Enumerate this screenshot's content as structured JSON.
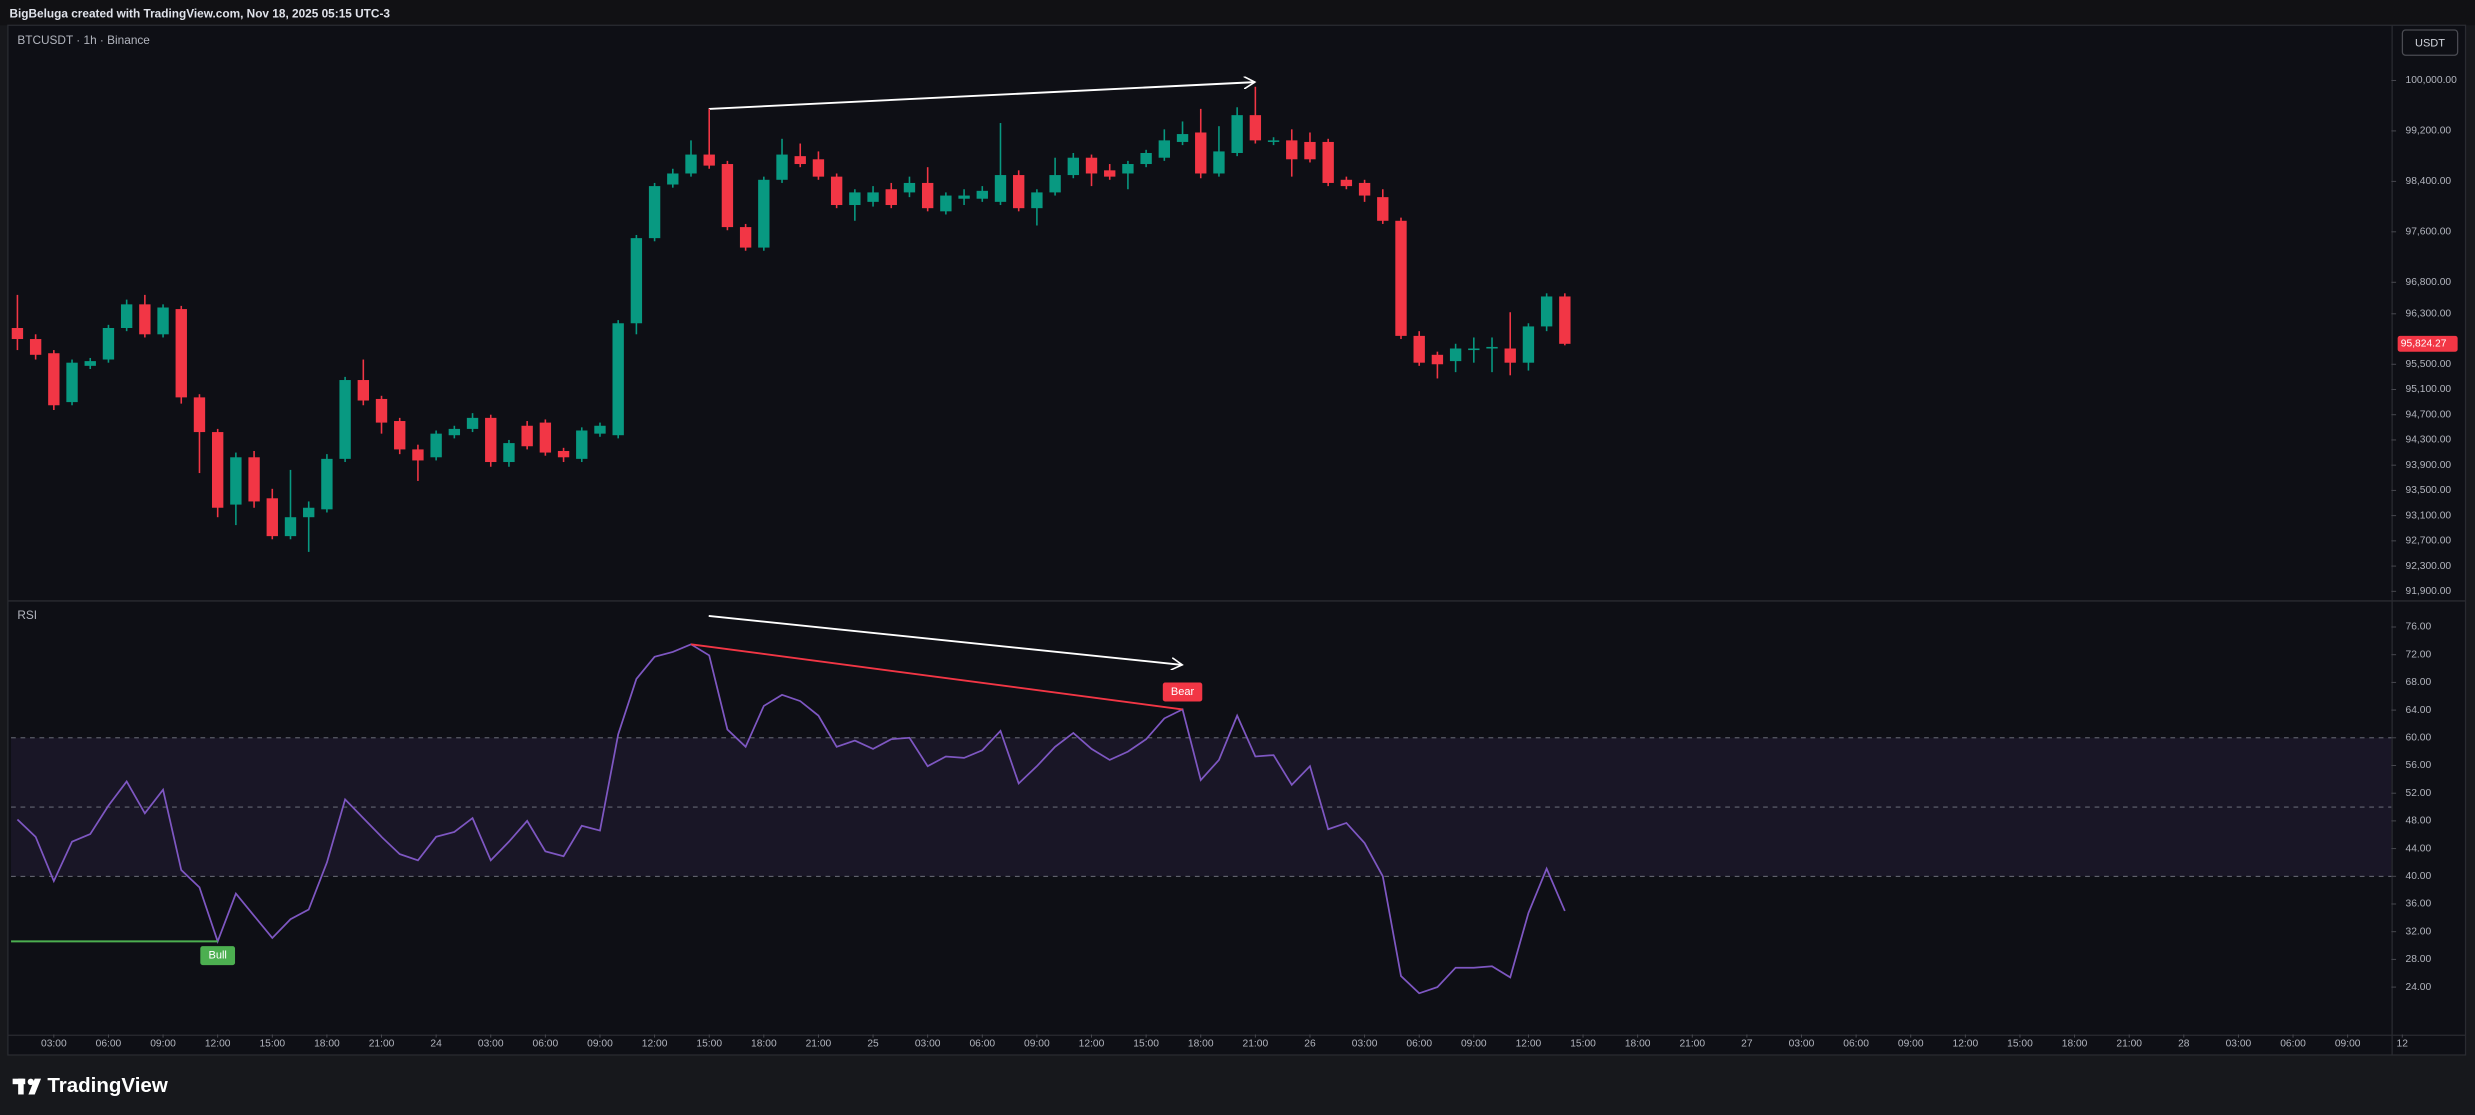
{
  "header": {
    "credit": "BigBeluga created with TradingView.com, Nov 18, 2025 05:15 UTC-3"
  },
  "footer": {
    "brand": "TradingView"
  },
  "chart_data": [
    {
      "type": "candlestick",
      "title": "BTCUSDT · 1h · Binance",
      "unit": "USDT",
      "up_color": "#089981",
      "down_color": "#f23645",
      "grid": false,
      "xlim": [
        -0.35,
        130.4
      ],
      "ylim": [
        91760,
        100850
      ],
      "yticks": [
        {
          "value": 100000,
          "label": "100,000.00"
        },
        {
          "value": 99200,
          "label": "99,200.00"
        },
        {
          "value": 98400,
          "label": "98,400.00"
        },
        {
          "value": 97600,
          "label": "97,600.00"
        },
        {
          "value": 96800,
          "label": "96,800.00"
        },
        {
          "value": 96300,
          "label": "96,300.00"
        },
        {
          "value": 95500,
          "label": "95,500.00"
        },
        {
          "value": 95100,
          "label": "95,100.00"
        },
        {
          "value": 94700,
          "label": "94,700.00"
        },
        {
          "value": 94300,
          "label": "94,300.00"
        },
        {
          "value": 93900,
          "label": "93,900.00"
        },
        {
          "value": 93500,
          "label": "93,500.00"
        },
        {
          "value": 93100,
          "label": "93,100.00"
        },
        {
          "value": 92700,
          "label": "92,700.00"
        },
        {
          "value": 92300,
          "label": "92,300.00"
        },
        {
          "value": 91900,
          "label": "91,900.00"
        }
      ],
      "last_price": {
        "value": 95824.27,
        "label": "95,824.27"
      },
      "open": [
        96075,
        95900,
        95675,
        94900,
        95475,
        95575,
        96075,
        96450,
        95975,
        96375,
        94975,
        94425,
        93275,
        94025,
        93375,
        92775,
        93075,
        93200,
        94000,
        95250,
        94950,
        94600,
        94150,
        94025,
        94375,
        94475,
        94650,
        93950,
        94525,
        94575,
        94125,
        94000,
        94400,
        94375,
        96150,
        97500,
        98350,
        98525,
        98825,
        98675,
        97675,
        97350,
        98425,
        98800,
        98750,
        98475,
        98025,
        98075,
        98275,
        98225,
        98375,
        97925,
        98125,
        98125,
        98075,
        98500,
        97975,
        98225,
        98500,
        98775,
        98575,
        98525,
        98675,
        98775,
        99025,
        99175,
        98525,
        98850,
        99450,
        99025,
        99050,
        99025,
        99025,
        98425,
        98375,
        98150,
        97775,
        95950,
        95650,
        95550,
        95725,
        95750,
        95750,
        95525,
        96100,
        96575
      ],
      "high": [
        96600,
        95975,
        95725,
        95575,
        95600,
        96125,
        96525,
        96600,
        96450,
        96425,
        95025,
        94475,
        94100,
        94125,
        93525,
        93825,
        93325,
        94075,
        95300,
        95575,
        95000,
        94650,
        94225,
        94450,
        94525,
        94725,
        94700,
        94300,
        94600,
        94625,
        94175,
        94500,
        94575,
        96200,
        97550,
        98375,
        98600,
        99050,
        99550,
        98725,
        97725,
        98475,
        99075,
        99000,
        98875,
        98525,
        98275,
        98325,
        98375,
        98475,
        98625,
        98225,
        98275,
        98325,
        99325,
        98575,
        98275,
        98775,
        98850,
        98825,
        98675,
        98725,
        98900,
        99225,
        99350,
        99550,
        99275,
        99575,
        99900,
        99100,
        99225,
        99175,
        99075,
        98475,
        98425,
        98275,
        97825,
        96025,
        95700,
        95825,
        95925,
        95925,
        96325,
        96150,
        96625,
        96625
      ],
      "low": [
        95725,
        95575,
        94775,
        94850,
        95425,
        95525,
        96025,
        95925,
        95925,
        94875,
        93775,
        93075,
        92950,
        93225,
        92725,
        92725,
        92525,
        93150,
        93950,
        94850,
        94400,
        94075,
        93650,
        93975,
        94325,
        94425,
        93875,
        93875,
        94150,
        94050,
        93950,
        93950,
        94350,
        94325,
        95975,
        97450,
        98300,
        98475,
        98600,
        97625,
        97300,
        97300,
        98375,
        98625,
        98425,
        97975,
        97775,
        98000,
        97975,
        98150,
        97925,
        97875,
        98025,
        98075,
        98025,
        97925,
        97700,
        98175,
        98450,
        98325,
        98425,
        98275,
        98625,
        98725,
        98975,
        98450,
        98475,
        98800,
        99000,
        98975,
        98475,
        98700,
        98325,
        98275,
        98075,
        97725,
        95900,
        95475,
        95275,
        95375,
        95525,
        95375,
        95325,
        95400,
        96025,
        95800
      ],
      "close": [
        95900,
        95650,
        94850,
        95525,
        95550,
        96075,
        96450,
        95975,
        96400,
        94975,
        94425,
        93225,
        94025,
        93325,
        92775,
        93075,
        93225,
        94000,
        95250,
        94925,
        94575,
        94150,
        93975,
        94400,
        94475,
        94650,
        93950,
        94250,
        94200,
        94100,
        94025,
        94450,
        94525,
        96150,
        97500,
        98325,
        98525,
        98825,
        98650,
        97675,
        97350,
        98425,
        98825,
        98675,
        98475,
        98025,
        98225,
        98225,
        98025,
        98375,
        97975,
        98175,
        98175,
        98250,
        98500,
        97975,
        98225,
        98500,
        98775,
        98525,
        98475,
        98675,
        98850,
        99050,
        99150,
        98525,
        98875,
        99450,
        99050,
        99050,
        98750,
        98750,
        98375,
        98325,
        98175,
        97775,
        95950,
        95525,
        95500,
        95750,
        95750,
        95775,
        95525,
        96100,
        96575,
        95824.27
      ]
    },
    {
      "type": "line",
      "title": "RSI",
      "color": "#7e57c2",
      "band": [
        40,
        60
      ],
      "band_color": "#7e57c2",
      "levels": [
        60,
        50,
        40
      ],
      "xlim": [
        -0.35,
        130.4
      ],
      "ylim": [
        17.16,
        79.65
      ],
      "yticks": [
        {
          "value": 76,
          "label": "76.00"
        },
        {
          "value": 72,
          "label": "72.00"
        },
        {
          "value": 68,
          "label": "68.00"
        },
        {
          "value": 64,
          "label": "64.00"
        },
        {
          "value": 60,
          "label": "60.00"
        },
        {
          "value": 56,
          "label": "56.00"
        },
        {
          "value": 52,
          "label": "52.00"
        },
        {
          "value": 48,
          "label": "48.00"
        },
        {
          "value": 44,
          "label": "44.00"
        },
        {
          "value": 40,
          "label": "40.00"
        },
        {
          "value": 36,
          "label": "36.00"
        },
        {
          "value": 32,
          "label": "32.00"
        },
        {
          "value": 28,
          "label": "28.00"
        },
        {
          "value": 24,
          "label": "24.00"
        }
      ],
      "xticks": [
        {
          "value": 2,
          "label": "03:00"
        },
        {
          "value": 5,
          "label": "06:00"
        },
        {
          "value": 8,
          "label": "09:00"
        },
        {
          "value": 11,
          "label": "12:00"
        },
        {
          "value": 14,
          "label": "15:00"
        },
        {
          "value": 17,
          "label": "18:00"
        },
        {
          "value": 20,
          "label": "21:00"
        },
        {
          "value": 23,
          "label": "24"
        },
        {
          "value": 26,
          "label": "03:00"
        },
        {
          "value": 29,
          "label": "06:00"
        },
        {
          "value": 32,
          "label": "09:00"
        },
        {
          "value": 35,
          "label": "12:00"
        },
        {
          "value": 38,
          "label": "15:00"
        },
        {
          "value": 41,
          "label": "18:00"
        },
        {
          "value": 44,
          "label": "21:00"
        },
        {
          "value": 47,
          "label": "25"
        },
        {
          "value": 50,
          "label": "03:00"
        },
        {
          "value": 53,
          "label": "06:00"
        },
        {
          "value": 56,
          "label": "09:00"
        },
        {
          "value": 59,
          "label": "12:00"
        },
        {
          "value": 62,
          "label": "15:00"
        },
        {
          "value": 65,
          "label": "18:00"
        },
        {
          "value": 68,
          "label": "21:00"
        },
        {
          "value": 71,
          "label": "26"
        },
        {
          "value": 74,
          "label": "03:00"
        },
        {
          "value": 77,
          "label": "06:00"
        },
        {
          "value": 80,
          "label": "09:00"
        },
        {
          "value": 83,
          "label": "12:00"
        },
        {
          "value": 86,
          "label": "15:00"
        },
        {
          "value": 89,
          "label": "18:00"
        },
        {
          "value": 92,
          "label": "21:00"
        },
        {
          "value": 95,
          "label": "27"
        },
        {
          "value": 98,
          "label": "03:00"
        },
        {
          "value": 101,
          "label": "06:00"
        },
        {
          "value": 104,
          "label": "09:00"
        },
        {
          "value": 107,
          "label": "12:00"
        },
        {
          "value": 110,
          "label": "15:00"
        },
        {
          "value": 113,
          "label": "18:00"
        },
        {
          "value": 116,
          "label": "21:00"
        },
        {
          "value": 119,
          "label": "28"
        },
        {
          "value": 122,
          "label": "03:00"
        },
        {
          "value": 125,
          "label": "06:00"
        },
        {
          "value": 128,
          "label": "09:00"
        },
        {
          "value": 131,
          "label": "12"
        }
      ],
      "values": [
        48.2,
        45.7,
        39.3,
        45.0,
        46.1,
        50.2,
        53.7,
        49.1,
        52.5,
        40.9,
        38.4,
        30.6,
        37.5,
        34.3,
        31.1,
        33.8,
        35.2,
        42.0,
        51.1,
        48.4,
        45.7,
        43.2,
        42.3,
        45.7,
        46.4,
        48.4,
        42.3,
        45.0,
        48.0,
        43.6,
        42.9,
        47.3,
        46.6,
        60.5,
        68.5,
        71.7,
        72.4,
        73.5,
        71.9,
        61.2,
        58.7,
        64.6,
        66.2,
        65.3,
        63.2,
        58.7,
        59.6,
        58.4,
        59.8,
        60.0,
        55.9,
        57.3,
        57.1,
        58.2,
        61.0,
        53.4,
        55.9,
        58.7,
        60.7,
        58.4,
        56.8,
        58.0,
        59.8,
        62.8,
        64.1,
        53.9,
        56.8,
        63.2,
        57.3,
        57.5,
        53.2,
        55.9,
        46.8,
        47.7,
        44.8,
        40.0,
        25.6,
        23.1,
        24.0,
        26.8,
        26.8,
        27.0,
        25.4,
        34.7,
        41.1,
        35.0
      ],
      "annotations": [
        {
          "label": "Bear",
          "color": "#f23645"
        },
        {
          "label": "Bull",
          "color": "#4caf50"
        }
      ]
    }
  ]
}
